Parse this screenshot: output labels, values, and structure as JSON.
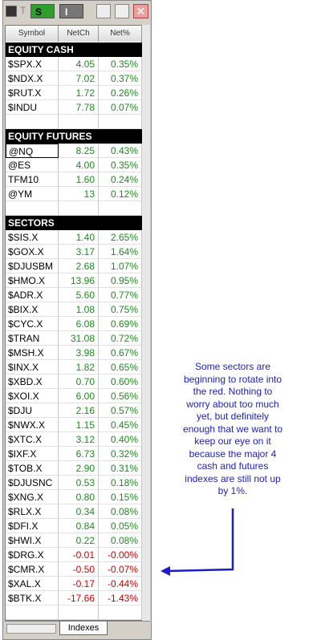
{
  "toolbar": {
    "buttons": [
      "T",
      "S",
      "I"
    ]
  },
  "columns": [
    "Symbol",
    "NetCh",
    "Net%"
  ],
  "sections": [
    {
      "title": "EQUITY CASH",
      "rows": [
        [
          "$SPX.X",
          "4.05",
          "0.35%"
        ],
        [
          "$NDX.X",
          "7.02",
          "0.37%"
        ],
        [
          "$RUT.X",
          "1.72",
          "0.26%"
        ],
        [
          "$INDU",
          "7.78",
          "0.07%"
        ]
      ]
    },
    {
      "title": "EQUITY FUTURES",
      "rows": [
        [
          "@NQ",
          "8.25",
          "0.43%"
        ],
        [
          "@ES",
          "4.00",
          "0.35%"
        ],
        [
          "TFM10",
          "1.60",
          "0.24%"
        ],
        [
          "@YM",
          "13",
          "0.12%"
        ]
      ]
    },
    {
      "title": "SECTORS",
      "rows": [
        [
          "$SIS.X",
          "1.40",
          "2.65%"
        ],
        [
          "$GOX.X",
          "3.17",
          "1.64%"
        ],
        [
          "$DJUSBM",
          "2.68",
          "1.07%"
        ],
        [
          "$HMO.X",
          "13.96",
          "0.95%"
        ],
        [
          "$ADR.X",
          "5.60",
          "0.77%"
        ],
        [
          "$BIX.X",
          "1.08",
          "0.75%"
        ],
        [
          "$CYC.X",
          "6.08",
          "0.69%"
        ],
        [
          "$TRAN",
          "31.08",
          "0.72%"
        ],
        [
          "$MSH.X",
          "3.98",
          "0.67%"
        ],
        [
          "$INX.X",
          "1.82",
          "0.65%"
        ],
        [
          "$XBD.X",
          "0.70",
          "0.60%"
        ],
        [
          "$XOI.X",
          "6.00",
          "0.56%"
        ],
        [
          "$DJU",
          "2.16",
          "0.57%"
        ],
        [
          "$NWX.X",
          "1.15",
          "0.45%"
        ],
        [
          "$XTC.X",
          "3.12",
          "0.40%"
        ],
        [
          "$IXF.X",
          "6.73",
          "0.32%"
        ],
        [
          "$TOB.X",
          "2.90",
          "0.31%"
        ],
        [
          "$DJUSNC",
          "0.53",
          "0.18%"
        ],
        [
          "$XNG.X",
          "0.80",
          "0.15%"
        ],
        [
          "$RLX.X",
          "0.34",
          "0.08%"
        ],
        [
          "$DFI.X",
          "0.84",
          "0.05%"
        ],
        [
          "$HWI.X",
          "0.22",
          "0.08%"
        ],
        [
          "$DRG.X",
          "-0.01",
          "-0.00%"
        ],
        [
          "$CMR.X",
          "-0.50",
          "-0.07%"
        ],
        [
          "$XAL.X",
          "-0.17",
          "-0.44%"
        ],
        [
          "$BTK.X",
          "-17.66",
          "-1.43%"
        ]
      ]
    }
  ],
  "tab": "Indexes",
  "annotation": {
    "lines": [
      "Some sectors are",
      "beginning to rotate into",
      "the red. Nothing to",
      "worry about too much",
      "yet, but definitely",
      "enough that we want to",
      "keep our eye on it",
      "because the major 4",
      "cash and futures",
      "indexes are still not up",
      "by 1%."
    ]
  }
}
